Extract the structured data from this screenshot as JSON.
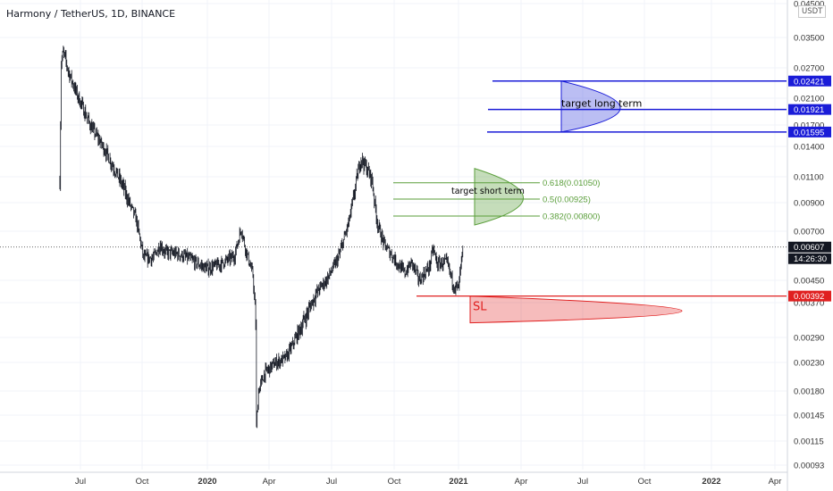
{
  "chart_data": {
    "type": "candlestick",
    "title": "Harmony / TetherUS, 1D, BINANCE",
    "currency": "USDT",
    "y_ticks": [
      "0.04500",
      "0.03500",
      "0.02700",
      "0.02100",
      "0.01700",
      "0.01400",
      "0.01100",
      "0.00900",
      "0.00700",
      "0.00450",
      "0.00370",
      "0.00290",
      "0.00230",
      "0.00180",
      "0.00145",
      "0.00115",
      "0.00093"
    ],
    "x_ticks": [
      "Jul",
      "Oct",
      "2020",
      "Apr",
      "Jul",
      "Oct",
      "2021",
      "Apr",
      "Jul",
      "Oct",
      "2022",
      "Apr"
    ],
    "last_price": "0.00607",
    "countdown": "14:26:30",
    "long_term_target": {
      "label": "target long term",
      "levels": [
        {
          "name": "upper",
          "value": "0.02421"
        },
        {
          "name": "mid",
          "value": "0.01921"
        },
        {
          "name": "lower",
          "value": "0.01595"
        }
      ]
    },
    "short_term_target": {
      "label": "target short term",
      "levels": [
        {
          "name": "fib-0618",
          "label": "0.618(0.01050)",
          "value": 0.0105
        },
        {
          "name": "fib-05",
          "label": "0.5(0.00925)",
          "value": 0.00925
        },
        {
          "name": "fib-0382",
          "label": "0.382(0.00800)",
          "value": 0.008
        }
      ]
    },
    "stop_loss": {
      "label": "SL",
      "value": "0.00392"
    },
    "anchors": [
      {
        "date": "2019-06-01",
        "price": 0.0106
      },
      {
        "date": "2019-06-03",
        "price": 0.028
      },
      {
        "date": "2019-06-06",
        "price": 0.031
      },
      {
        "date": "2019-06-14",
        "price": 0.026
      },
      {
        "date": "2019-06-25",
        "price": 0.022
      },
      {
        "date": "2019-07-15",
        "price": 0.017
      },
      {
        "date": "2019-08-10",
        "price": 0.013
      },
      {
        "date": "2019-09-01",
        "price": 0.0102
      },
      {
        "date": "2019-09-20",
        "price": 0.0078
      },
      {
        "date": "2019-10-01",
        "price": 0.0055
      },
      {
        "date": "2019-10-15",
        "price": 0.0055
      },
      {
        "date": "2019-10-25",
        "price": 0.0062
      },
      {
        "date": "2019-11-01",
        "price": 0.0058
      },
      {
        "date": "2019-11-20",
        "price": 0.0057
      },
      {
        "date": "2019-12-05",
        "price": 0.0055
      },
      {
        "date": "2019-12-20",
        "price": 0.0052
      },
      {
        "date": "2020-01-01",
        "price": 0.005
      },
      {
        "date": "2020-01-20",
        "price": 0.0052
      },
      {
        "date": "2020-02-10",
        "price": 0.0056
      },
      {
        "date": "2020-02-20",
        "price": 0.0072
      },
      {
        "date": "2020-02-26",
        "price": 0.006
      },
      {
        "date": "2020-03-08",
        "price": 0.0047
      },
      {
        "date": "2020-03-12",
        "price": 0.0032
      },
      {
        "date": "2020-03-13",
        "price": 0.0013
      },
      {
        "date": "2020-03-16",
        "price": 0.0018
      },
      {
        "date": "2020-03-25",
        "price": 0.0021
      },
      {
        "date": "2020-04-10",
        "price": 0.0023
      },
      {
        "date": "2020-04-25",
        "price": 0.0024
      },
      {
        "date": "2020-05-10",
        "price": 0.0029
      },
      {
        "date": "2020-05-25",
        "price": 0.0034
      },
      {
        "date": "2020-06-10",
        "price": 0.0041
      },
      {
        "date": "2020-06-25",
        "price": 0.0046
      },
      {
        "date": "2020-07-10",
        "price": 0.0055
      },
      {
        "date": "2020-07-25",
        "price": 0.0075
      },
      {
        "date": "2020-08-05",
        "price": 0.0105
      },
      {
        "date": "2020-08-12",
        "price": 0.0128
      },
      {
        "date": "2020-08-20",
        "price": 0.0118
      },
      {
        "date": "2020-08-28",
        "price": 0.0108
      },
      {
        "date": "2020-09-05",
        "price": 0.0075
      },
      {
        "date": "2020-09-15",
        "price": 0.0062
      },
      {
        "date": "2020-09-25",
        "price": 0.0057
      },
      {
        "date": "2020-10-05",
        "price": 0.0052
      },
      {
        "date": "2020-10-15",
        "price": 0.0048
      },
      {
        "date": "2020-10-25",
        "price": 0.0053
      },
      {
        "date": "2020-11-05",
        "price": 0.0045
      },
      {
        "date": "2020-11-20",
        "price": 0.0051
      },
      {
        "date": "2020-11-25",
        "price": 0.006
      },
      {
        "date": "2020-12-01",
        "price": 0.0052
      },
      {
        "date": "2020-12-15",
        "price": 0.0053
      },
      {
        "date": "2020-12-25",
        "price": 0.0043
      },
      {
        "date": "2021-01-01",
        "price": 0.0042
      },
      {
        "date": "2021-01-05",
        "price": 0.0053
      },
      {
        "date": "2021-01-08",
        "price": 0.0061
      }
    ],
    "colors": {
      "candles": "#131722",
      "grid": "#f0f3fa",
      "long_target": "#1a1cd8",
      "short_target": "#5a9e3a",
      "stop_loss": "#e02020",
      "axis_text": "#333333"
    }
  }
}
